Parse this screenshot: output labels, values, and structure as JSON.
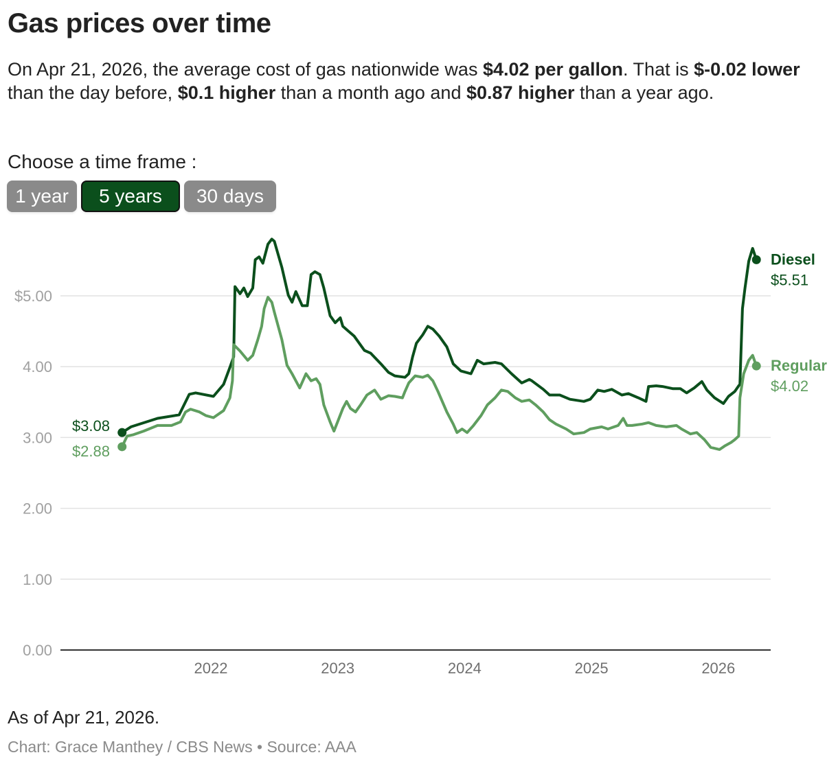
{
  "header": {
    "title": "Gas prices over time",
    "summary": {
      "p1": "On Apr 21, 2026, the average cost of gas nationwide was ",
      "b1": "$4.02 per gallon",
      "p2": ". That is ",
      "b2": "$-0.02 lower",
      "p3": " than the day before, ",
      "b3": "$0.1 higher",
      "p4": " than a month ago and ",
      "b4": "$0.87 higher",
      "p5": " than a year ago."
    }
  },
  "timeframe": {
    "label": "Choose a time frame :",
    "options": [
      {
        "label": "1 year",
        "active": false
      },
      {
        "label": "5 years",
        "active": true
      },
      {
        "label": "30 days",
        "active": false
      }
    ]
  },
  "footer": {
    "as_of": "As of Apr 21, 2026.",
    "credit": "Chart: Grace Manthey / CBS News • Source: AAA"
  },
  "chart_data": {
    "type": "line",
    "title": "Gas prices over time",
    "xlabel": "",
    "ylabel": "",
    "x_ticks": [
      "2022",
      "2023",
      "2024",
      "2025",
      "2026"
    ],
    "x_tick_values": [
      2022,
      2023,
      2024,
      2025,
      2026
    ],
    "y_ticks": [
      "$5.00",
      "4.00",
      "3.00",
      "2.00",
      "1.00",
      "0.00"
    ],
    "y_tick_values": [
      5,
      4,
      3,
      2,
      1,
      0
    ],
    "ylim": [
      0,
      5.8
    ],
    "xlim": [
      2021.3,
      2026.3
    ],
    "grid": true,
    "legend": "direct-labels-right",
    "series": [
      {
        "name": "Diesel",
        "color": "#0b4f1c",
        "start_label": "$3.08",
        "end_label": "$5.51",
        "points": [
          [
            2021.3,
            3.07
          ],
          [
            2021.37,
            3.15
          ],
          [
            2021.58,
            3.27
          ],
          [
            2021.75,
            3.32
          ],
          [
            2021.83,
            3.61
          ],
          [
            2021.88,
            3.63
          ],
          [
            2022.02,
            3.58
          ],
          [
            2022.1,
            3.75
          ],
          [
            2022.15,
            3.99
          ],
          [
            2022.18,
            4.14
          ],
          [
            2022.19,
            5.13
          ],
          [
            2022.23,
            5.03
          ],
          [
            2022.26,
            5.11
          ],
          [
            2022.29,
            4.99
          ],
          [
            2022.33,
            5.11
          ],
          [
            2022.35,
            5.51
          ],
          [
            2022.38,
            5.55
          ],
          [
            2022.41,
            5.46
          ],
          [
            2022.45,
            5.73
          ],
          [
            2022.48,
            5.8
          ],
          [
            2022.5,
            5.77
          ],
          [
            2022.56,
            5.4
          ],
          [
            2022.61,
            5.01
          ],
          [
            2022.64,
            4.91
          ],
          [
            2022.67,
            5.06
          ],
          [
            2022.72,
            4.86
          ],
          [
            2022.76,
            4.86
          ],
          [
            2022.79,
            5.3
          ],
          [
            2022.82,
            5.34
          ],
          [
            2022.86,
            5.3
          ],
          [
            2022.89,
            5.11
          ],
          [
            2022.94,
            4.72
          ],
          [
            2022.98,
            4.62
          ],
          [
            2023.02,
            4.69
          ],
          [
            2023.04,
            4.57
          ],
          [
            2023.13,
            4.43
          ],
          [
            2023.21,
            4.23
          ],
          [
            2023.26,
            4.19
          ],
          [
            2023.34,
            4.04
          ],
          [
            2023.4,
            3.92
          ],
          [
            2023.45,
            3.87
          ],
          [
            2023.53,
            3.85
          ],
          [
            2023.56,
            3.9
          ],
          [
            2023.59,
            4.14
          ],
          [
            2023.62,
            4.33
          ],
          [
            2023.67,
            4.45
          ],
          [
            2023.71,
            4.57
          ],
          [
            2023.75,
            4.53
          ],
          [
            2023.8,
            4.43
          ],
          [
            2023.86,
            4.28
          ],
          [
            2023.91,
            4.04
          ],
          [
            2023.97,
            3.94
          ],
          [
            2024.05,
            3.9
          ],
          [
            2024.1,
            4.09
          ],
          [
            2024.15,
            4.04
          ],
          [
            2024.24,
            4.06
          ],
          [
            2024.29,
            4.04
          ],
          [
            2024.37,
            3.9
          ],
          [
            2024.45,
            3.77
          ],
          [
            2024.51,
            3.82
          ],
          [
            2024.53,
            3.8
          ],
          [
            2024.62,
            3.68
          ],
          [
            2024.67,
            3.6
          ],
          [
            2024.75,
            3.6
          ],
          [
            2024.83,
            3.54
          ],
          [
            2024.94,
            3.51
          ],
          [
            2024.99,
            3.54
          ],
          [
            2025.05,
            3.67
          ],
          [
            2025.1,
            3.65
          ],
          [
            2025.16,
            3.68
          ],
          [
            2025.24,
            3.6
          ],
          [
            2025.29,
            3.62
          ],
          [
            2025.37,
            3.56
          ],
          [
            2025.43,
            3.51
          ],
          [
            2025.45,
            3.72
          ],
          [
            2025.51,
            3.73
          ],
          [
            2025.56,
            3.72
          ],
          [
            2025.64,
            3.69
          ],
          [
            2025.7,
            3.69
          ],
          [
            2025.75,
            3.63
          ],
          [
            2025.81,
            3.7
          ],
          [
            2025.87,
            3.79
          ],
          [
            2025.91,
            3.67
          ],
          [
            2025.97,
            3.56
          ],
          [
            2026.04,
            3.48
          ],
          [
            2026.08,
            3.58
          ],
          [
            2026.13,
            3.65
          ],
          [
            2026.16,
            3.73
          ],
          [
            2026.17,
            3.75
          ],
          [
            2026.19,
            4.82
          ],
          [
            2026.21,
            5.11
          ],
          [
            2026.24,
            5.49
          ],
          [
            2026.26,
            5.61
          ],
          [
            2026.27,
            5.67
          ],
          [
            2026.3,
            5.51
          ]
        ]
      },
      {
        "name": "Regular",
        "color": "#5f9e5f",
        "start_label": "$2.88",
        "end_label": "$4.02",
        "points": [
          [
            2021.3,
            2.87
          ],
          [
            2021.34,
            3.02
          ],
          [
            2021.39,
            3.04
          ],
          [
            2021.47,
            3.09
          ],
          [
            2021.58,
            3.17
          ],
          [
            2021.69,
            3.17
          ],
          [
            2021.76,
            3.22
          ],
          [
            2021.8,
            3.36
          ],
          [
            2021.84,
            3.4
          ],
          [
            2021.91,
            3.36
          ],
          [
            2021.96,
            3.31
          ],
          [
            2022.02,
            3.28
          ],
          [
            2022.1,
            3.38
          ],
          [
            2022.15,
            3.56
          ],
          [
            2022.17,
            3.8
          ],
          [
            2022.18,
            4.31
          ],
          [
            2022.23,
            4.22
          ],
          [
            2022.29,
            4.09
          ],
          [
            2022.33,
            4.16
          ],
          [
            2022.37,
            4.38
          ],
          [
            2022.4,
            4.57
          ],
          [
            2022.42,
            4.82
          ],
          [
            2022.45,
            4.98
          ],
          [
            2022.48,
            4.91
          ],
          [
            2022.5,
            4.77
          ],
          [
            2022.56,
            4.38
          ],
          [
            2022.6,
            4.02
          ],
          [
            2022.64,
            3.9
          ],
          [
            2022.67,
            3.8
          ],
          [
            2022.7,
            3.7
          ],
          [
            2022.75,
            3.9
          ],
          [
            2022.79,
            3.8
          ],
          [
            2022.83,
            3.83
          ],
          [
            2022.86,
            3.75
          ],
          [
            2022.89,
            3.46
          ],
          [
            2022.94,
            3.22
          ],
          [
            2022.97,
            3.09
          ],
          [
            2023.01,
            3.27
          ],
          [
            2023.04,
            3.41
          ],
          [
            2023.07,
            3.51
          ],
          [
            2023.1,
            3.41
          ],
          [
            2023.14,
            3.36
          ],
          [
            2023.18,
            3.46
          ],
          [
            2023.23,
            3.6
          ],
          [
            2023.29,
            3.67
          ],
          [
            2023.34,
            3.54
          ],
          [
            2023.4,
            3.59
          ],
          [
            2023.45,
            3.58
          ],
          [
            2023.51,
            3.56
          ],
          [
            2023.53,
            3.65
          ],
          [
            2023.56,
            3.77
          ],
          [
            2023.61,
            3.87
          ],
          [
            2023.67,
            3.85
          ],
          [
            2023.71,
            3.88
          ],
          [
            2023.75,
            3.8
          ],
          [
            2023.79,
            3.65
          ],
          [
            2023.86,
            3.36
          ],
          [
            2023.91,
            3.19
          ],
          [
            2023.94,
            3.07
          ],
          [
            2023.98,
            3.12
          ],
          [
            2024.02,
            3.07
          ],
          [
            2024.07,
            3.17
          ],
          [
            2024.13,
            3.31
          ],
          [
            2024.18,
            3.46
          ],
          [
            2024.24,
            3.56
          ],
          [
            2024.29,
            3.67
          ],
          [
            2024.34,
            3.65
          ],
          [
            2024.4,
            3.56
          ],
          [
            2024.45,
            3.51
          ],
          [
            2024.51,
            3.53
          ],
          [
            2024.56,
            3.46
          ],
          [
            2024.62,
            3.36
          ],
          [
            2024.67,
            3.25
          ],
          [
            2024.72,
            3.19
          ],
          [
            2024.8,
            3.12
          ],
          [
            2024.86,
            3.05
          ],
          [
            2024.94,
            3.07
          ],
          [
            2024.99,
            3.12
          ],
          [
            2025.08,
            3.15
          ],
          [
            2025.13,
            3.12
          ],
          [
            2025.21,
            3.17
          ],
          [
            2025.25,
            3.27
          ],
          [
            2025.28,
            3.17
          ],
          [
            2025.32,
            3.17
          ],
          [
            2025.4,
            3.19
          ],
          [
            2025.45,
            3.21
          ],
          [
            2025.51,
            3.17
          ],
          [
            2025.59,
            3.15
          ],
          [
            2025.67,
            3.17
          ],
          [
            2025.71,
            3.12
          ],
          [
            2025.78,
            3.05
          ],
          [
            2025.83,
            3.07
          ],
          [
            2025.89,
            2.97
          ],
          [
            2025.94,
            2.86
          ],
          [
            2026.01,
            2.83
          ],
          [
            2026.05,
            2.88
          ],
          [
            2026.1,
            2.93
          ],
          [
            2026.13,
            2.97
          ],
          [
            2026.16,
            3.02
          ],
          [
            2026.17,
            3.56
          ],
          [
            2026.2,
            3.9
          ],
          [
            2026.24,
            4.09
          ],
          [
            2026.27,
            4.16
          ],
          [
            2026.3,
            4.01
          ]
        ]
      }
    ]
  }
}
